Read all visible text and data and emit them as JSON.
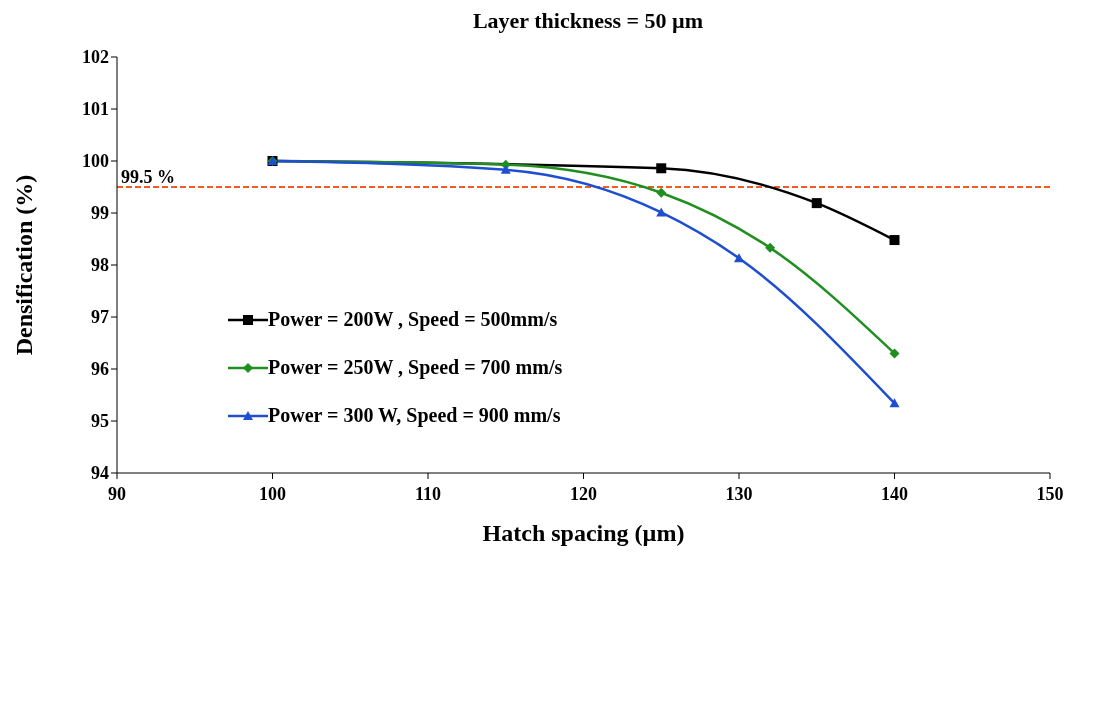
{
  "chart_data": {
    "type": "line",
    "title": "Layer thickness = 50 µm",
    "xlabel": "Hatch spacing (µm)",
    "ylabel": "Densification  (%)",
    "xlim": [
      90,
      150
    ],
    "xticks": [
      90,
      100,
      110,
      120,
      130,
      140,
      150
    ],
    "ylim": [
      94,
      102
    ],
    "yticks": [
      94,
      95,
      96,
      97,
      98,
      99,
      100,
      101,
      102
    ],
    "legend": "left",
    "ref_lines": [
      {
        "axis": "y",
        "value": 99.5,
        "label": "99.5 %",
        "color": "#f05a23",
        "line_style": "dashed"
      }
    ],
    "series": [
      {
        "name": "Power = 200W , Speed = 500mm/s",
        "color": "#000000",
        "marker": "square",
        "x": [
          100,
          125,
          135,
          140
        ],
        "values": [
          100,
          99.86,
          99.19,
          98.48
        ]
      },
      {
        "name": "Power = 250W , Speed = 700 mm/s",
        "color": "#1f8f1f",
        "marker": "diamond",
        "x": [
          100,
          115,
          125,
          132,
          140
        ],
        "values": [
          100,
          99.93,
          99.39,
          98.33,
          96.3
        ]
      },
      {
        "name": "Power = 300 W, Speed = 900 mm/s",
        "color": "#1f4fd0",
        "marker": "triangle",
        "x": [
          100,
          115,
          125,
          130,
          140
        ],
        "values": [
          100,
          99.83,
          99.01,
          98.13,
          95.34
        ]
      }
    ]
  }
}
